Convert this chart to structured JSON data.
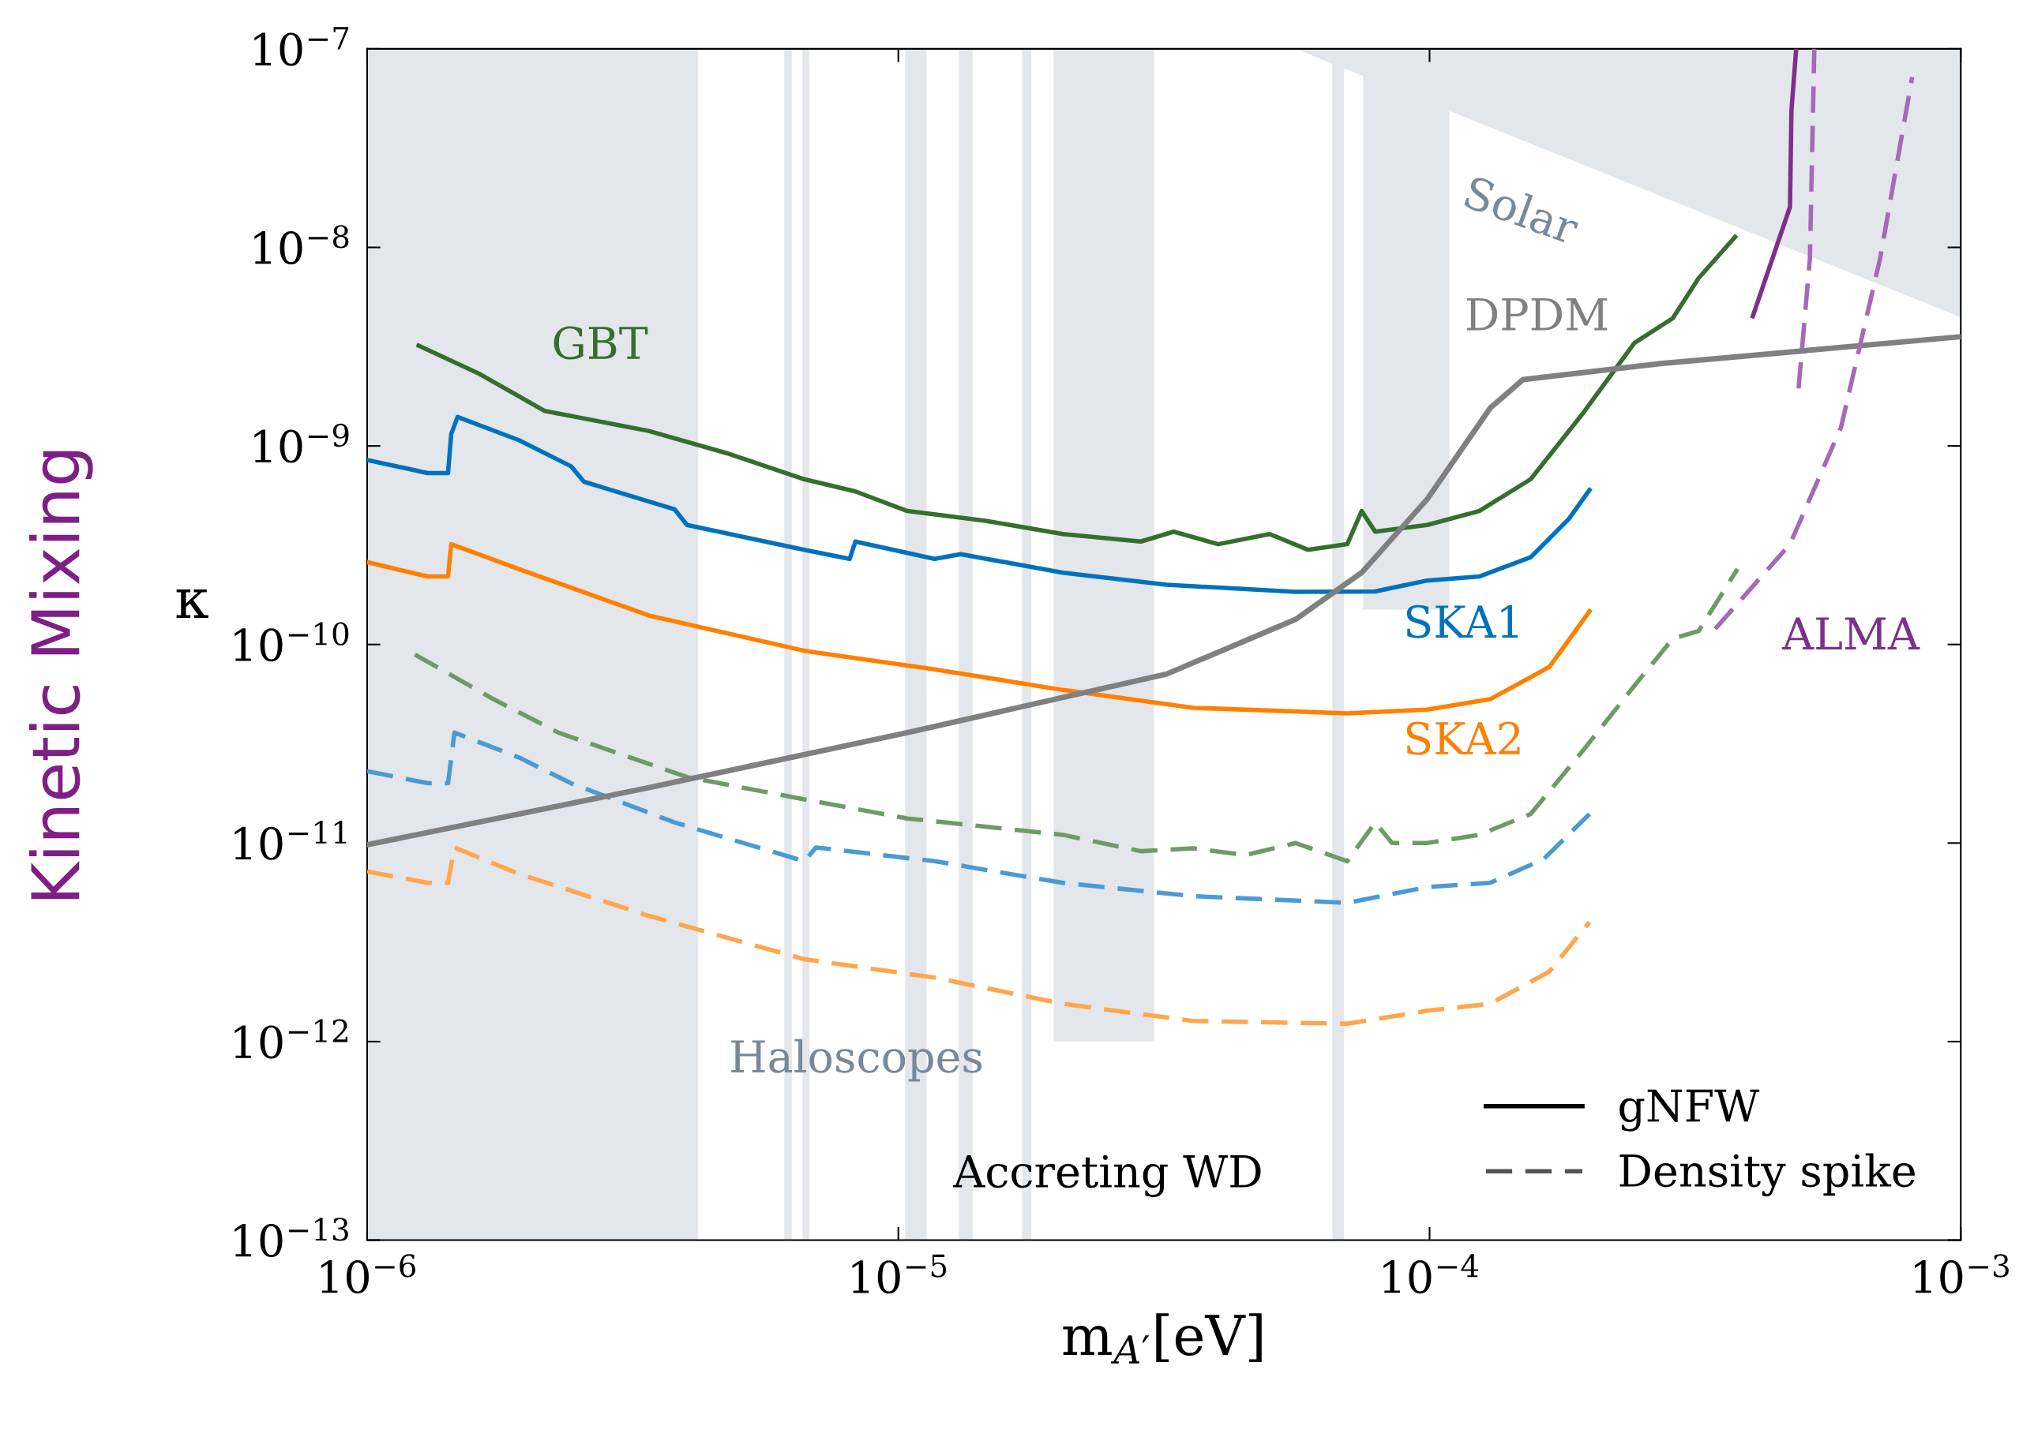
{
  "chart_data": {
    "type": "line",
    "xlabel": "m$_{A′}$[eV]",
    "ylabel": "κ",
    "annotations": [
      "Kinetic Mixing",
      "Accreting WD",
      "Haloscopes",
      "Solar"
    ],
    "log": "xy",
    "grid": false,
    "legend": "bottom right",
    "xlim": [
      1e-06,
      0.001
    ],
    "ylim": [
      1e-13,
      1e-07
    ],
    "xticks": [
      {
        "value": 1e-06,
        "label": "10$^{−6}$"
      },
      {
        "value": 1e-05,
        "label": "10$^{−5}$"
      },
      {
        "value": 0.0001,
        "label": "10$^{−4}$"
      },
      {
        "value": 0.001,
        "label": "10$^{−3}$"
      }
    ],
    "yticks": [
      {
        "value": 1e-13,
        "label": "10$^{−13}$"
      },
      {
        "value": 1e-12,
        "label": "10$^{−12}$"
      },
      {
        "value": 1e-11,
        "label": "10$^{−11}$"
      },
      {
        "value": 1e-10,
        "label": "10$^{−10}$"
      },
      {
        "value": 1e-09,
        "label": "10$^{−9}$"
      },
      {
        "value": 1e-08,
        "label": "10$^{−8}$"
      },
      {
        "value": 1e-07,
        "label": "10$^{−7}$"
      }
    ],
    "series": [
      {
        "type": "area",
        "color": "#e3e6ea",
        "x": [
          1e-06,
          1e-06,
          4.2e-06,
          4.2e-06,
          6.1e-06,
          6.1e-06,
          6.3e-06,
          6.3e-06,
          6.6e-06,
          6.6e-06,
          6.8e-06,
          6.8e-06,
          1.03e-05,
          1.03e-05,
          1.13e-05,
          1.13e-05,
          1.3e-05,
          1.3e-05,
          1.38e-05,
          1.38e-05,
          1.71e-05,
          1.71e-05,
          1.78e-05,
          1.78e-05,
          1.96e-05,
          1.96e-05,
          3.03e-05,
          3.03e-05,
          6.56e-05,
          6.56e-05,
          6.9e-05,
          6.9e-05,
          7.5e-05,
          7.5e-05,
          0.000109,
          0.000109
        ],
        "values": [
          1e-07,
          1e-13,
          1e-13,
          1e-07,
          1e-07,
          1e-13,
          1e-13,
          1e-07,
          1e-07,
          1e-13,
          1e-13,
          1e-07,
          1e-07,
          1e-13,
          1e-13,
          1e-07,
          1e-07,
          1e-13,
          1e-13,
          1e-07,
          1e-07,
          1e-13,
          1e-13,
          1e-07,
          1e-07,
          1e-12,
          1e-12,
          1e-07,
          1e-07,
          1e-13,
          1e-13,
          1e-07,
          1e-07,
          1.5e-10,
          1.5e-10,
          1e-07
        ]
      },
      {
        "type": "area",
        "color": "#e3e6ea",
        "x": [
          5.6e-05,
          0.001
        ],
        "values": [
          1e-07,
          4.45e-09
        ]
      },
      {
        "name": "GBT",
        "color": "#356e2e",
        "line_style": "solid",
        "x": [
          1.25e-06,
          1.63e-06,
          2.16e-06,
          3.39e-06,
          4.75e-06,
          6.65e-06,
          8.3e-06,
          1.04e-05,
          1.46e-05,
          2.04e-05,
          2.86e-05,
          3.3e-05,
          4e-05,
          5e-05,
          5.9e-05,
          7e-05,
          7.45e-05,
          7.9e-05,
          9.9e-05,
          0.000124,
          0.000155,
          0.000194,
          0.000243,
          0.000287,
          0.000321,
          0.000376
        ],
        "values": [
          3.2e-09,
          2.3e-09,
          1.5e-09,
          1.19e-09,
          9.2e-10,
          6.8e-10,
          5.9e-10,
          4.7e-10,
          4.2e-10,
          3.6e-10,
          3.3e-10,
          3.7e-10,
          3.2e-10,
          3.6e-10,
          3e-10,
          3.2e-10,
          4.7e-10,
          3.7e-10,
          4e-10,
          4.7e-10,
          6.8e-10,
          1.45e-09,
          3.3e-09,
          4.4e-09,
          7e-09,
          1.13e-08
        ]
      },
      {
        "name": "SKA1",
        "color": "#0072bd",
        "line_style": "solid",
        "x": [
          1e-06,
          1.3e-06,
          1.42e-06,
          1.44e-06,
          1.48e-06,
          1.93e-06,
          2.42e-06,
          2.56e-06,
          3.79e-06,
          4e-06,
          6.65e-06,
          8.1e-06,
          8.3e-06,
          1.17e-05,
          1.31e-05,
          2.04e-05,
          3.2e-05,
          5.6e-05,
          7.9e-05,
          9.9e-05,
          0.000124,
          0.000155,
          0.000183,
          0.0002
        ],
        "values": [
          8.5e-10,
          7.3e-10,
          7.3e-10,
          1.15e-09,
          1.4e-09,
          1.07e-09,
          7.9e-10,
          6.6e-10,
          4.8e-10,
          4e-10,
          3e-10,
          2.7e-10,
          3.3e-10,
          2.7e-10,
          2.85e-10,
          2.3e-10,
          2e-10,
          1.84e-10,
          1.85e-10,
          2.1e-10,
          2.2e-10,
          2.75e-10,
          4.3e-10,
          6e-10
        ]
      },
      {
        "name": "SKA2",
        "color": "#ff8000",
        "line_style": "solid",
        "x": [
          1e-06,
          1.3e-06,
          1.42e-06,
          1.44e-06,
          1.93e-06,
          3.39e-06,
          6.65e-06,
          1.17e-05,
          2.04e-05,
          3.59e-05,
          7e-05,
          9.9e-05,
          0.00013,
          0.000168,
          0.0002
        ],
        "values": [
          2.6e-10,
          2.2e-10,
          2.2e-10,
          3.2e-10,
          2.4e-10,
          1.4e-10,
          9.3e-11,
          7.5e-11,
          5.9e-11,
          4.8e-11,
          4.5e-11,
          4.7e-11,
          5.3e-11,
          7.7e-11,
          1.47e-10
        ]
      },
      {
        "color": "#6f9a68",
        "line_style": "dashed",
        "x": [
          1.23e-06,
          1.73e-06,
          2.29e-06,
          4e-06,
          6.65e-06,
          1.04e-05,
          2.04e-05,
          2.86e-05,
          3.59e-05,
          4.5e-05,
          5.6e-05,
          7e-05,
          7.9e-05,
          8.5e-05,
          9.9e-05,
          0.000124,
          0.000155,
          0.000194,
          0.000243,
          0.000287,
          0.000321,
          0.00038
        ],
        "values": [
          8.9e-11,
          5.3e-11,
          3.6e-11,
          2.15e-11,
          1.66e-11,
          1.33e-11,
          1.1e-11,
          9.1e-12,
          9.4e-12,
          8.7e-12,
          1e-11,
          8.1e-12,
          1.27e-11,
          1e-11,
          1e-11,
          1.1e-11,
          1.4e-11,
          2.9e-11,
          6.2e-11,
          1.07e-10,
          1.17e-10,
          2.4e-10
        ]
      },
      {
        "color": "#4a9ad4",
        "line_style": "dashed",
        "x": [
          1e-06,
          1.3e-06,
          1.42e-06,
          1.46e-06,
          1.93e-06,
          2.42e-06,
          3.79e-06,
          6.65e-06,
          7e-06,
          1.17e-05,
          2.04e-05,
          3.59e-05,
          7e-05,
          9.9e-05,
          0.00013,
          0.000164,
          0.0002
        ],
        "values": [
          2.3e-11,
          2e-11,
          2e-11,
          3.6e-11,
          2.7e-11,
          2e-11,
          1.27e-11,
          8.1e-12,
          9.5e-12,
          8.1e-12,
          6.3e-12,
          5.4e-12,
          5e-12,
          6e-12,
          6.3e-12,
          8.3e-12,
          1.4e-11
        ]
      },
      {
        "color": "#ffa64d",
        "line_style": "dashed",
        "x": [
          1e-06,
          1.3e-06,
          1.42e-06,
          1.46e-06,
          1.93e-06,
          3.39e-06,
          6.65e-06,
          1.17e-05,
          2.04e-05,
          3.59e-05,
          7e-05,
          9.9e-05,
          0.00013,
          0.000168,
          0.0002
        ],
        "values": [
          7.2e-12,
          6.3e-12,
          6.3e-12,
          9.5e-12,
          7e-12,
          4.3e-12,
          2.6e-12,
          2.1e-12,
          1.55e-12,
          1.27e-12,
          1.23e-12,
          1.43e-12,
          1.55e-12,
          2.25e-12,
          4e-12
        ]
      },
      {
        "name": "DPDM",
        "color": "#808080",
        "line_style": "solid",
        "x": [
          1e-06,
          3.39e-06,
          1.04e-05,
          3.2e-05,
          5.6e-05,
          7.45e-05,
          9.9e-05,
          0.00013,
          0.00015,
          0.000272,
          0.001
        ],
        "values": [
          9.8e-12,
          1.9e-11,
          3.6e-11,
          7.1e-11,
          1.34e-10,
          2.3e-10,
          5.4e-10,
          1.55e-09,
          2.16e-09,
          2.6e-09,
          3.55e-09
        ]
      },
      {
        "name": "ALMA",
        "color": "#7e2f8e",
        "line_style": "solid",
        "x": [
          0.000406,
          0.000477,
          0.00048,
          0.00049
        ],
        "values": [
          4.5e-09,
          1.6e-08,
          4.9e-08,
          1e-07
        ]
      },
      {
        "color": "#a569b8",
        "line_style": "dashed",
        "x": [
          0.000345,
          0.000477,
          0.000595,
          0.000705,
          0.00081
        ],
        "values": [
          1.2e-10,
          3.2e-10,
          1.24e-09,
          8.8e-09,
          7.2e-08
        ]
      },
      {
        "color": "#a569b8",
        "line_style": "dashed",
        "x": [
          0.000495,
          0.00052,
          0.00053
        ],
        "values": [
          1.95e-09,
          8.8e-09,
          1e-07
        ]
      },
      {
        "name": "gNFW",
        "color": "#000000",
        "line_style": "solid"
      },
      {
        "name": "Density spike",
        "color": "#555555",
        "line_style": "dashed"
      }
    ]
  }
}
